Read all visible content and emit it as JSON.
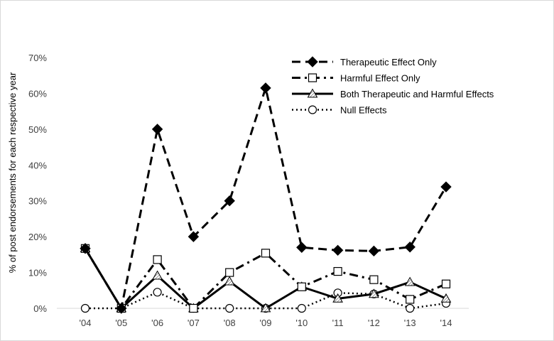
{
  "chart_data": {
    "type": "line",
    "title": "",
    "xlabel": "",
    "ylabel": "% of post endorsements for each respective year",
    "categories": [
      "'04",
      "'05",
      "'06",
      "'07",
      "'08",
      "'09",
      "'10",
      "'11",
      "'12",
      "'13",
      "'14"
    ],
    "ylim": [
      0,
      70
    ],
    "yticks": [
      "0%",
      "10%",
      "20%",
      "30%",
      "40%",
      "50%",
      "60%",
      "70%"
    ],
    "grid": false,
    "legend_position": "top-right",
    "series": [
      {
        "name": "Therapeutic Effect Only",
        "line_style": "long-dash",
        "marker": "filled-diamond",
        "values": [
          16.7,
          0,
          50,
          20,
          30,
          61.5,
          17,
          16.2,
          16,
          17.1,
          33.9
        ]
      },
      {
        "name": "Harmful Effect Only",
        "line_style": "dash-dot",
        "marker": "open-square",
        "values": [
          16.7,
          0,
          13.6,
          0,
          10,
          15.4,
          6,
          10.3,
          8,
          2.5,
          6.8
        ]
      },
      {
        "name": "Both Therapeutic and Harmful Effects",
        "line_style": "solid",
        "marker": "hatched-triangle",
        "values": [
          16.7,
          0,
          9.1,
          0,
          7.5,
          0,
          6,
          2.7,
          4,
          7.3,
          2.7
        ]
      },
      {
        "name": "Null Effects",
        "line_style": "dotted",
        "marker": "open-circle",
        "values": [
          0,
          0,
          4.5,
          0,
          0,
          0,
          0,
          4.3,
          4,
          0,
          1.4
        ]
      }
    ]
  }
}
